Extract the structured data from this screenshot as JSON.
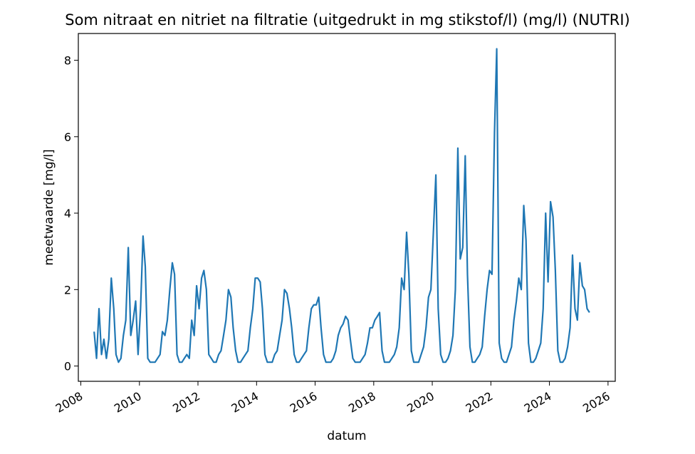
{
  "chart_data": {
    "type": "line",
    "title": "Som nitraat en nitriet na filtratie (uitgedrukt in mg stikstof/l) (mg/l) (NUTRI)",
    "xlabel": "datum",
    "ylabel": "meetwaarde [mg/l]",
    "x_ticks": [
      "2008",
      "2010",
      "2012",
      "2014",
      "2016",
      "2018",
      "2020",
      "2022",
      "2024",
      "2026"
    ],
    "y_ticks": [
      "0",
      "2",
      "4",
      "6",
      "8"
    ],
    "xlim": [
      "2007-12-01",
      "2026-04-01"
    ],
    "ylim": [
      -0.4,
      8.7
    ],
    "grid": false,
    "legend": "none",
    "colors": {
      "series": "#1f77b4"
    },
    "series": [
      {
        "x": [
          "2008-06-15",
          "2008-07-15",
          "2008-08-15",
          "2008-09-15",
          "2008-10-15",
          "2008-11-15",
          "2008-12-15",
          "2009-01-15",
          "2009-02-15",
          "2009-03-15",
          "2009-04-15",
          "2009-05-15",
          "2009-06-15",
          "2009-07-15",
          "2009-08-15",
          "2009-09-15",
          "2009-10-15",
          "2009-11-15",
          "2009-12-15",
          "2010-01-15",
          "2010-02-15",
          "2010-03-15",
          "2010-04-15",
          "2010-05-15",
          "2010-06-15",
          "2010-07-15",
          "2010-08-15",
          "2010-09-15",
          "2010-10-15",
          "2010-11-15",
          "2010-12-15",
          "2011-01-15",
          "2011-02-15",
          "2011-03-15",
          "2011-04-15",
          "2011-05-15",
          "2011-06-15",
          "2011-07-15",
          "2011-08-15",
          "2011-09-15",
          "2011-10-15",
          "2011-11-15",
          "2011-12-15",
          "2012-01-15",
          "2012-02-15",
          "2012-03-15",
          "2012-04-15",
          "2012-05-15",
          "2012-06-15",
          "2012-07-15",
          "2012-08-15",
          "2012-09-15",
          "2012-10-15",
          "2012-11-15",
          "2012-12-15",
          "2013-01-15",
          "2013-02-15",
          "2013-03-15",
          "2013-04-15",
          "2013-05-15",
          "2013-06-15",
          "2013-07-15",
          "2013-08-15",
          "2013-09-15",
          "2013-10-15",
          "2013-11-15",
          "2013-12-15",
          "2014-01-15",
          "2014-02-15",
          "2014-03-15",
          "2014-04-15",
          "2014-05-15",
          "2014-06-15",
          "2014-07-15",
          "2014-08-15",
          "2014-09-15",
          "2014-10-15",
          "2014-11-15",
          "2014-12-15",
          "2015-01-15",
          "2015-02-15",
          "2015-03-15",
          "2015-04-15",
          "2015-05-15",
          "2015-06-15",
          "2015-07-15",
          "2015-08-15",
          "2015-09-15",
          "2015-10-15",
          "2015-11-15",
          "2015-12-15",
          "2016-01-15",
          "2016-02-15",
          "2016-03-15",
          "2016-04-15",
          "2016-05-15",
          "2016-06-15",
          "2016-07-15",
          "2016-08-15",
          "2016-09-15",
          "2016-10-15",
          "2016-11-15",
          "2016-12-15",
          "2017-01-15",
          "2017-02-15",
          "2017-03-15",
          "2017-04-15",
          "2017-05-15",
          "2017-06-15",
          "2017-07-15",
          "2017-08-15",
          "2017-09-15",
          "2017-10-15",
          "2017-11-15",
          "2017-12-15",
          "2018-01-15",
          "2018-02-15",
          "2018-03-15",
          "2018-04-15",
          "2018-05-15",
          "2018-06-15",
          "2018-07-15",
          "2018-08-15",
          "2018-09-15",
          "2018-10-15",
          "2018-11-15",
          "2018-12-15",
          "2019-01-15",
          "2019-02-15",
          "2019-03-15",
          "2019-04-15",
          "2019-05-15",
          "2019-06-15",
          "2019-07-15",
          "2019-08-15",
          "2019-09-15",
          "2019-10-15",
          "2019-11-15",
          "2019-12-15",
          "2020-01-15",
          "2020-02-15",
          "2020-03-15",
          "2020-04-15",
          "2020-05-15",
          "2020-06-15",
          "2020-07-15",
          "2020-08-15",
          "2020-09-15",
          "2020-10-15",
          "2020-11-15",
          "2020-12-15",
          "2021-01-15",
          "2021-02-15",
          "2021-03-15",
          "2021-04-15",
          "2021-05-15",
          "2021-06-15",
          "2021-07-15",
          "2021-08-15",
          "2021-09-15",
          "2021-10-15",
          "2021-11-15",
          "2021-12-15",
          "2022-01-15",
          "2022-02-15",
          "2022-03-15",
          "2022-04-15",
          "2022-05-15",
          "2022-06-15",
          "2022-07-15",
          "2022-08-15",
          "2022-09-15",
          "2022-10-15",
          "2022-11-15",
          "2022-12-15",
          "2023-01-15",
          "2023-02-15",
          "2023-03-15",
          "2023-04-15",
          "2023-05-15",
          "2023-06-15",
          "2023-07-15",
          "2023-08-15",
          "2023-09-15",
          "2023-10-15",
          "2023-11-15",
          "2023-12-15",
          "2024-01-15",
          "2024-02-15",
          "2024-03-15",
          "2024-04-15",
          "2024-05-15",
          "2024-06-15",
          "2024-07-15",
          "2024-08-15",
          "2024-09-15",
          "2024-10-15",
          "2024-11-15",
          "2024-12-15",
          "2025-01-15",
          "2025-02-15",
          "2025-03-15",
          "2025-04-15",
          "2025-05-15"
        ],
        "y": [
          0.9,
          0.2,
          1.5,
          0.3,
          0.7,
          0.2,
          0.7,
          2.3,
          1.5,
          0.3,
          0.1,
          0.2,
          0.8,
          1.2,
          3.1,
          0.8,
          1.2,
          1.7,
          0.3,
          1.5,
          3.4,
          2.6,
          0.2,
          0.1,
          0.1,
          0.1,
          0.2,
          0.3,
          0.9,
          0.8,
          1.2,
          2.0,
          2.7,
          2.4,
          0.3,
          0.1,
          0.1,
          0.2,
          0.3,
          0.2,
          1.2,
          0.8,
          2.1,
          1.5,
          2.3,
          2.5,
          2.0,
          0.3,
          0.2,
          0.1,
          0.1,
          0.3,
          0.4,
          0.8,
          1.2,
          2.0,
          1.8,
          1.0,
          0.4,
          0.1,
          0.1,
          0.2,
          0.3,
          0.4,
          1.0,
          1.5,
          2.3,
          2.3,
          2.2,
          1.5,
          0.3,
          0.1,
          0.1,
          0.1,
          0.3,
          0.4,
          0.8,
          1.2,
          2.0,
          1.9,
          1.5,
          1.0,
          0.3,
          0.1,
          0.1,
          0.2,
          0.3,
          0.4,
          1.0,
          1.5,
          1.6,
          1.6,
          1.8,
          1.0,
          0.3,
          0.1,
          0.1,
          0.1,
          0.2,
          0.4,
          0.8,
          1.0,
          1.1,
          1.3,
          1.2,
          0.7,
          0.2,
          0.1,
          0.1,
          0.1,
          0.2,
          0.3,
          0.6,
          1.0,
          1.0,
          1.2,
          1.3,
          1.4,
          0.4,
          0.1,
          0.1,
          0.1,
          0.2,
          0.3,
          0.5,
          1.0,
          2.3,
          2.0,
          3.5,
          2.4,
          0.4,
          0.1,
          0.1,
          0.1,
          0.3,
          0.5,
          1.0,
          1.8,
          2.0,
          3.5,
          5.0,
          1.5,
          0.3,
          0.1,
          0.1,
          0.2,
          0.4,
          0.8,
          2.0,
          5.7,
          2.8,
          3.1,
          5.5,
          2.4,
          0.5,
          0.1,
          0.1,
          0.2,
          0.3,
          0.5,
          1.3,
          2.0,
          2.5,
          2.4,
          6.1,
          8.3,
          0.6,
          0.2,
          0.1,
          0.1,
          0.3,
          0.5,
          1.2,
          1.7,
          2.3,
          2.0,
          4.2,
          3.3,
          0.6,
          0.1,
          0.1,
          0.2,
          0.4,
          0.6,
          1.5,
          4.0,
          2.2,
          4.3,
          3.9,
          2.5,
          0.4,
          0.1,
          0.1,
          0.2,
          0.5,
          1.0,
          2.9,
          1.5,
          1.2,
          2.7,
          2.1,
          2.0,
          1.5,
          1.4
        ]
      }
    ]
  }
}
